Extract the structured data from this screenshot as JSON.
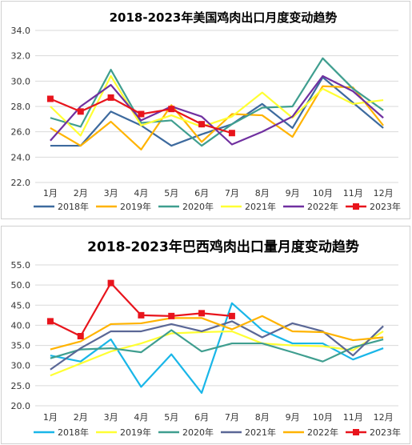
{
  "chart_data": [
    {
      "type": "line",
      "title": "2018-2023年美国鸡肉出口月度变动趋势",
      "categories": [
        "1月",
        "2月",
        "3月",
        "4月",
        "5月",
        "6月",
        "7月",
        "8月",
        "9月",
        "10月",
        "11月",
        "12月"
      ],
      "ylim": [
        22.0,
        34.0
      ],
      "yticks": [
        "22.0",
        "24.0",
        "26.0",
        "28.0",
        "30.0",
        "32.0",
        "34.0"
      ],
      "grid": true,
      "legend_position": "bottom",
      "series": [
        {
          "name": "2018年",
          "color": "#3D6A9E",
          "marker": false,
          "values": [
            24.9,
            24.9,
            27.6,
            26.5,
            24.9,
            25.8,
            26.6,
            28.2,
            26.3,
            30.3,
            28.3,
            26.3
          ]
        },
        {
          "name": "2019年",
          "color": "#FFB300",
          "marker": false,
          "values": [
            26.3,
            24.9,
            26.8,
            24.6,
            28.1,
            25.2,
            27.4,
            27.3,
            25.6,
            29.6,
            29.5,
            26.5
          ]
        },
        {
          "name": "2020年",
          "color": "#3F9E8F",
          "marker": false,
          "values": [
            27.1,
            26.4,
            30.9,
            26.7,
            26.9,
            24.9,
            26.6,
            27.9,
            28.0,
            31.8,
            29.4,
            27.7
          ]
        },
        {
          "name": "2021年",
          "color": "#FFFF33",
          "marker": false,
          "values": [
            28.0,
            25.7,
            30.4,
            26.5,
            27.3,
            26.4,
            27.2,
            29.1,
            27.1,
            29.4,
            28.2,
            28.5
          ]
        },
        {
          "name": "2022年",
          "color": "#7030A0",
          "marker": false,
          "values": [
            25.3,
            28.0,
            29.7,
            26.9,
            28.0,
            27.2,
            25.0,
            26.0,
            27.2,
            30.4,
            29.2,
            27.1
          ]
        },
        {
          "name": "2023年",
          "color": "#E8141C",
          "marker": true,
          "values": [
            28.6,
            27.6,
            28.7,
            27.4,
            27.8,
            26.6,
            25.9,
            null,
            null,
            null,
            null,
            null
          ]
        }
      ]
    },
    {
      "type": "line",
      "title": "2018-2023年巴西鸡肉出口量月度变动趋势",
      "categories": [
        "1月",
        "2月",
        "3月",
        "4月",
        "5月",
        "6月",
        "7月",
        "8月",
        "9月",
        "10月",
        "11月",
        "12月"
      ],
      "ylim": [
        20.0,
        55.0
      ],
      "yticks": [
        "20.0",
        "25.0",
        "30.0",
        "35.0",
        "40.0",
        "45.0",
        "50.0",
        "55.0"
      ],
      "grid": true,
      "legend_position": "bottom",
      "series": [
        {
          "name": "2018年",
          "color": "#19B6E8",
          "marker": false,
          "values": [
            32.5,
            31.0,
            36.5,
            24.7,
            32.8,
            23.2,
            45.5,
            38.8,
            35.5,
            35.5,
            31.5,
            34.3
          ]
        },
        {
          "name": "2019年",
          "color": "#FFFF33",
          "marker": false,
          "values": [
            27.5,
            30.5,
            33.5,
            35.5,
            38.0,
            38.3,
            38.5,
            35.5,
            35.0,
            34.8,
            33.8,
            38.5
          ]
        },
        {
          "name": "2020年",
          "color": "#3F9E8F",
          "marker": false,
          "values": [
            31.8,
            34.0,
            34.3,
            33.3,
            38.8,
            33.5,
            35.5,
            35.5,
            33.3,
            31.0,
            34.5,
            36.5
          ]
        },
        {
          "name": "2021年",
          "color": "#5A6796",
          "marker": false,
          "values": [
            29.0,
            34.3,
            38.5,
            38.5,
            40.3,
            38.5,
            41.0,
            37.0,
            40.5,
            38.5,
            32.5,
            39.8
          ]
        },
        {
          "name": "2022年",
          "color": "#FFB300",
          "marker": false,
          "values": [
            34.0,
            36.0,
            40.3,
            40.5,
            41.8,
            41.8,
            39.0,
            42.3,
            38.5,
            38.3,
            36.3,
            37.0
          ]
        },
        {
          "name": "2023年",
          "color": "#E8141C",
          "marker": true,
          "values": [
            41.0,
            37.3,
            50.5,
            42.5,
            42.3,
            43.0,
            42.3,
            null,
            null,
            null,
            null,
            null
          ]
        }
      ]
    }
  ]
}
